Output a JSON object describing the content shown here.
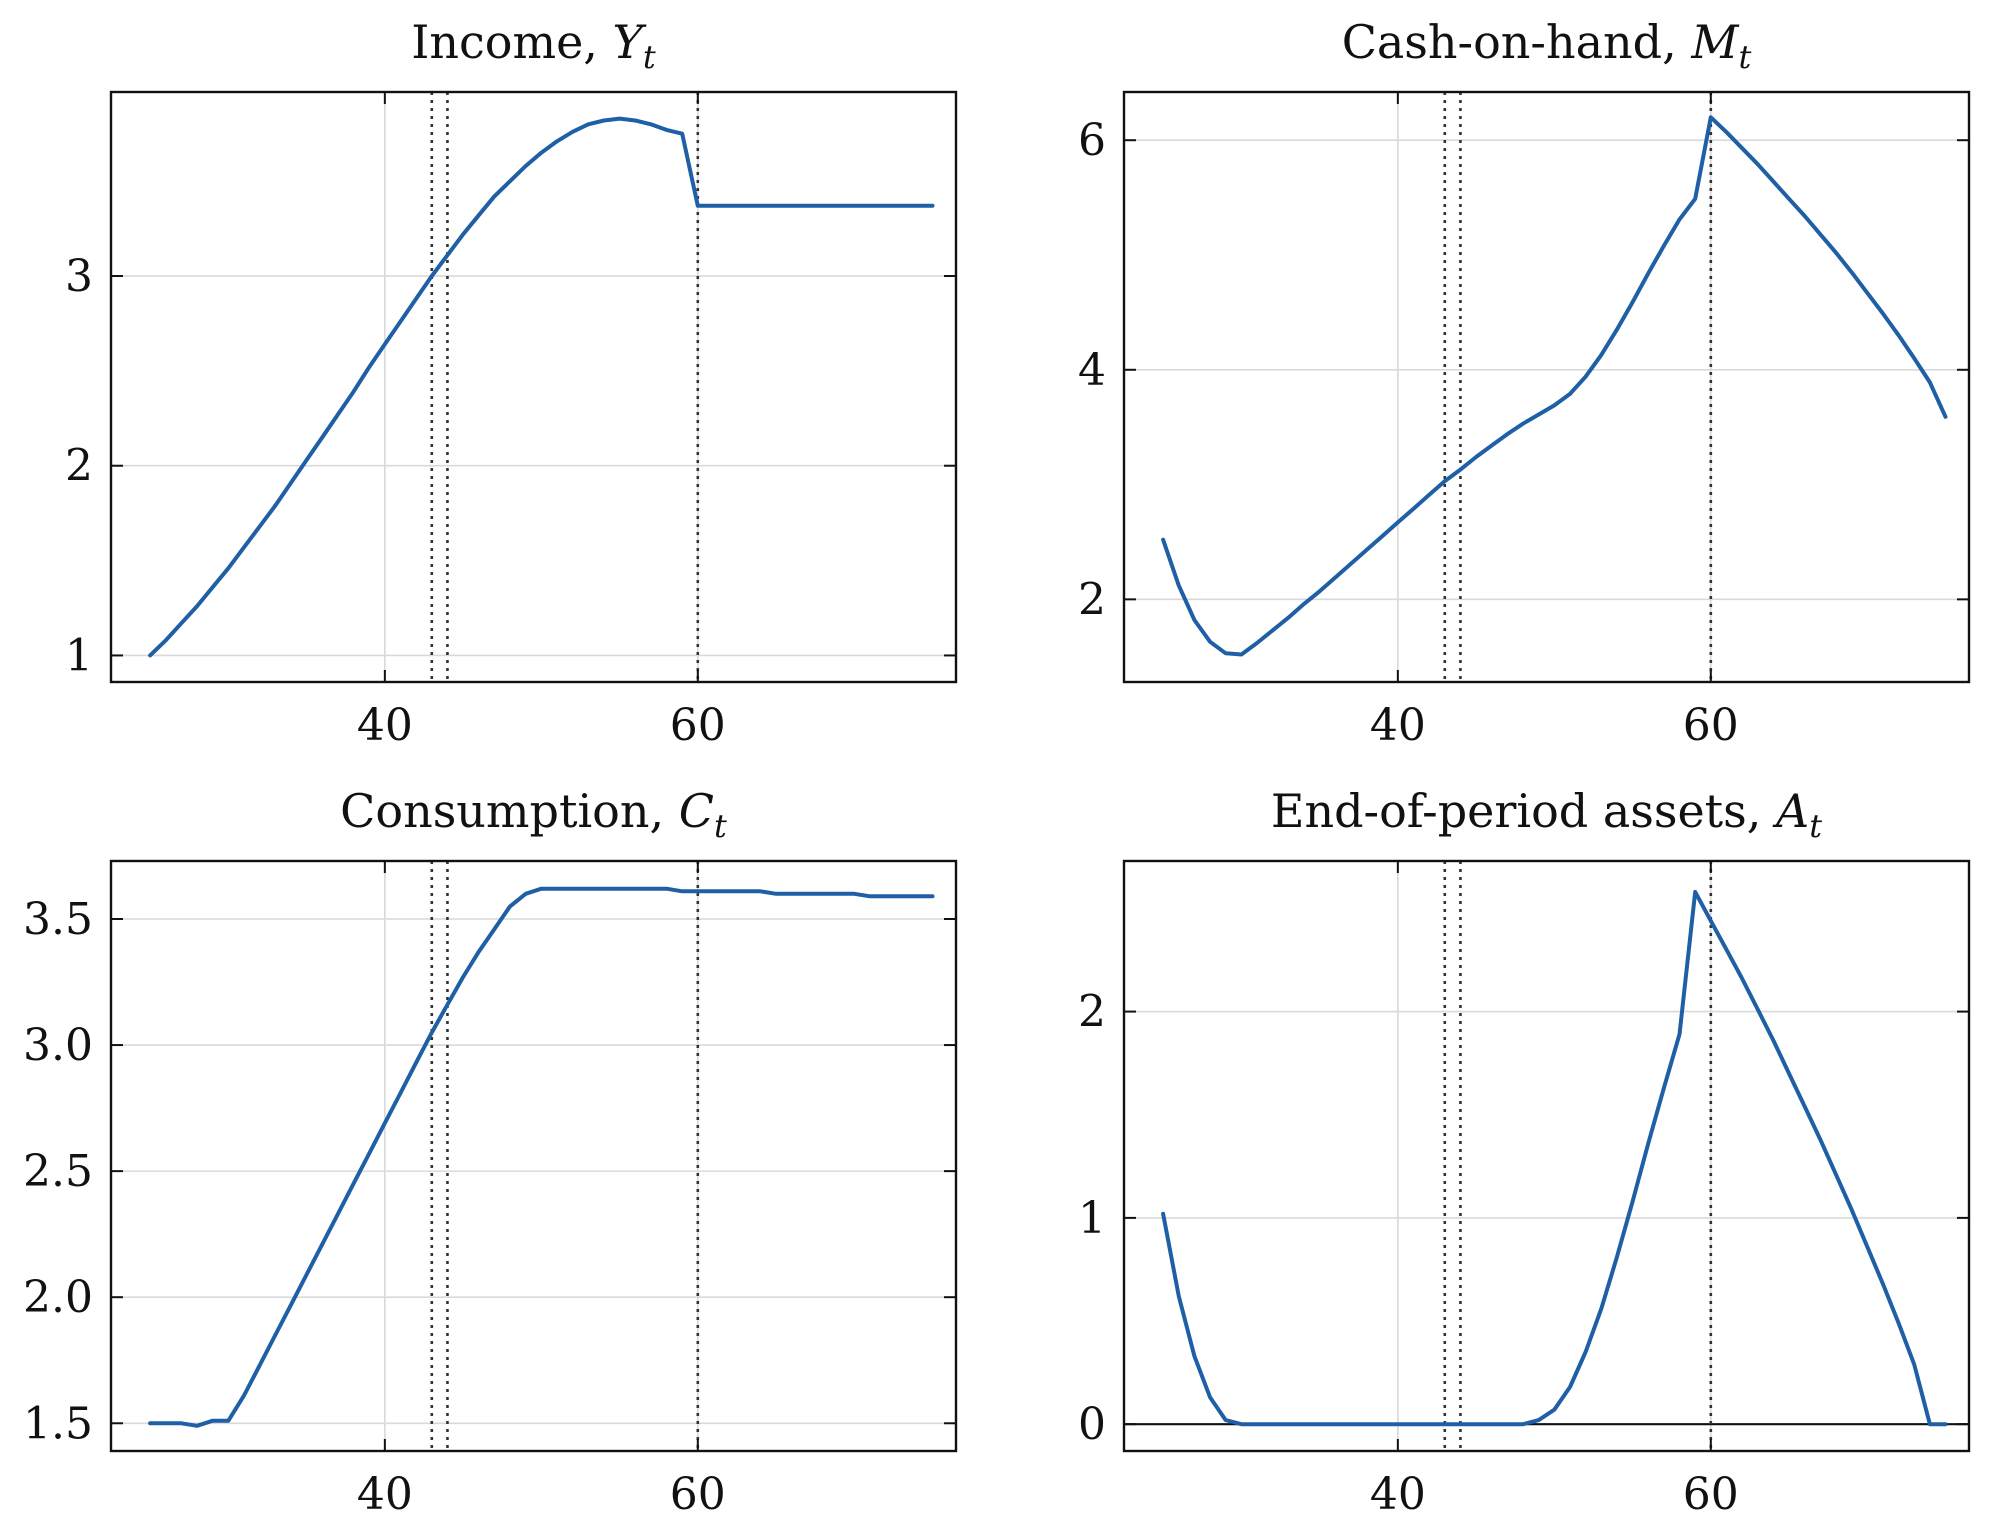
{
  "colors": {
    "series": "#1f5fa5",
    "grid": "#d9d9d9",
    "marker_lines": "#333333"
  },
  "chart_data": [
    {
      "type": "line",
      "title": "Income, ",
      "title_symbol": "Y",
      "title_sub": "t",
      "xlim": [
        22.5,
        76.5
      ],
      "ylim": [
        0.86,
        3.97
      ],
      "x_ticks": [
        40,
        60
      ],
      "y_ticks": [
        1,
        2,
        3
      ],
      "y_tick_labels": [
        "1",
        "2",
        "3"
      ],
      "grid": true,
      "vertical_lines": [
        43,
        44,
        60
      ],
      "x": [
        25,
        26,
        27,
        28,
        29,
        30,
        31,
        32,
        33,
        34,
        35,
        36,
        37,
        38,
        39,
        40,
        41,
        42,
        43,
        44,
        45,
        46,
        47,
        48,
        49,
        50,
        51,
        52,
        53,
        54,
        55,
        56,
        57,
        58,
        59,
        60,
        61,
        62,
        63,
        64,
        65,
        66,
        67,
        68,
        69,
        70,
        71,
        72,
        73,
        74,
        75
      ],
      "y": [
        1.0,
        1.08,
        1.17,
        1.26,
        1.36,
        1.46,
        1.57,
        1.68,
        1.79,
        1.91,
        2.03,
        2.15,
        2.27,
        2.39,
        2.52,
        2.64,
        2.76,
        2.88,
        3.0,
        3.11,
        3.22,
        3.32,
        3.42,
        3.5,
        3.58,
        3.65,
        3.71,
        3.76,
        3.8,
        3.82,
        3.83,
        3.82,
        3.8,
        3.77,
        3.75,
        3.37,
        3.37,
        3.37,
        3.37,
        3.37,
        3.37,
        3.37,
        3.37,
        3.37,
        3.37,
        3.37,
        3.37,
        3.37,
        3.37,
        3.37,
        3.37
      ]
    },
    {
      "type": "line",
      "title": "Cash-on-hand, ",
      "title_symbol": "M",
      "title_sub": "t",
      "xlim": [
        22.5,
        76.5
      ],
      "ylim": [
        1.28,
        6.42
      ],
      "x_ticks": [
        40,
        60
      ],
      "y_ticks": [
        2,
        4,
        6
      ],
      "y_tick_labels": [
        "2",
        "4",
        "6"
      ],
      "grid": true,
      "vertical_lines": [
        43,
        44,
        60
      ],
      "x": [
        25,
        26,
        27,
        28,
        29,
        30,
        31,
        32,
        33,
        34,
        35,
        36,
        37,
        38,
        39,
        40,
        41,
        42,
        43,
        44,
        45,
        46,
        47,
        48,
        49,
        50,
        51,
        52,
        53,
        54,
        55,
        56,
        57,
        58,
        59,
        60,
        61,
        62,
        63,
        64,
        65,
        66,
        67,
        68,
        69,
        70,
        71,
        72,
        73,
        74,
        75
      ],
      "y": [
        2.52,
        2.12,
        1.82,
        1.63,
        1.53,
        1.52,
        1.62,
        1.73,
        1.84,
        1.96,
        2.07,
        2.19,
        2.31,
        2.43,
        2.55,
        2.67,
        2.79,
        2.91,
        3.03,
        3.13,
        3.24,
        3.34,
        3.44,
        3.53,
        3.61,
        3.69,
        3.79,
        3.94,
        4.13,
        4.35,
        4.59,
        4.84,
        5.08,
        5.31,
        5.49,
        6.2,
        6.07,
        5.93,
        5.79,
        5.64,
        5.49,
        5.34,
        5.18,
        5.02,
        4.85,
        4.67,
        4.49,
        4.3,
        4.1,
        3.89,
        3.59
      ]
    },
    {
      "type": "line",
      "title": "Consumption, ",
      "title_symbol": "C",
      "title_sub": "t",
      "xlim": [
        22.5,
        76.5
      ],
      "ylim": [
        1.39,
        3.73
      ],
      "x_ticks": [
        40,
        60
      ],
      "y_ticks": [
        1.5,
        2.0,
        2.5,
        3.0,
        3.5
      ],
      "y_tick_labels": [
        "1.5",
        "2.0",
        "2.5",
        "3.0",
        "3.5"
      ],
      "grid": true,
      "vertical_lines": [
        43,
        44,
        60
      ],
      "x": [
        25,
        26,
        27,
        28,
        29,
        30,
        31,
        32,
        33,
        34,
        35,
        36,
        37,
        38,
        39,
        40,
        41,
        42,
        43,
        44,
        45,
        46,
        47,
        48,
        49,
        50,
        51,
        52,
        53,
        54,
        55,
        56,
        57,
        58,
        59,
        60,
        61,
        62,
        63,
        64,
        65,
        66,
        67,
        68,
        69,
        70,
        71,
        72,
        73,
        74,
        75
      ],
      "y": [
        1.5,
        1.5,
        1.5,
        1.49,
        1.51,
        1.51,
        1.61,
        1.73,
        1.85,
        1.97,
        2.09,
        2.21,
        2.33,
        2.45,
        2.57,
        2.69,
        2.81,
        2.93,
        3.05,
        3.16,
        3.27,
        3.37,
        3.46,
        3.55,
        3.6,
        3.62,
        3.62,
        3.62,
        3.62,
        3.62,
        3.62,
        3.62,
        3.62,
        3.62,
        3.61,
        3.61,
        3.61,
        3.61,
        3.61,
        3.61,
        3.6,
        3.6,
        3.6,
        3.6,
        3.6,
        3.6,
        3.59,
        3.59,
        3.59,
        3.59,
        3.59
      ]
    },
    {
      "type": "line",
      "title": "End-of-period assets, ",
      "title_symbol": "A",
      "title_sub": "t",
      "xlim": [
        22.5,
        76.5
      ],
      "ylim": [
        -0.13,
        2.73
      ],
      "x_ticks": [
        40,
        60
      ],
      "y_ticks": [
        0,
        1,
        2
      ],
      "y_tick_labels": [
        "0",
        "1",
        "2"
      ],
      "grid": true,
      "zero_line": true,
      "vertical_lines": [
        43,
        44,
        60
      ],
      "x": [
        25,
        26,
        27,
        28,
        29,
        30,
        31,
        32,
        33,
        34,
        35,
        36,
        37,
        38,
        39,
        40,
        41,
        42,
        43,
        44,
        45,
        46,
        47,
        48,
        49,
        50,
        51,
        52,
        53,
        54,
        55,
        56,
        57,
        58,
        59,
        60,
        61,
        62,
        63,
        64,
        65,
        66,
        67,
        68,
        69,
        70,
        71,
        72,
        73,
        74,
        75
      ],
      "y": [
        1.02,
        0.62,
        0.33,
        0.13,
        0.02,
        0.0,
        0.0,
        0.0,
        0.0,
        0.0,
        0.0,
        0.0,
        0.0,
        0.0,
        0.0,
        0.0,
        0.0,
        0.0,
        0.0,
        0.0,
        0.0,
        0.0,
        0.0,
        0.0,
        0.02,
        0.07,
        0.18,
        0.35,
        0.56,
        0.81,
        1.08,
        1.36,
        1.63,
        1.89,
        2.58,
        2.44,
        2.3,
        2.16,
        2.01,
        1.86,
        1.7,
        1.54,
        1.38,
        1.21,
        1.04,
        0.86,
        0.68,
        0.49,
        0.29,
        0.0,
        0.0
      ]
    }
  ]
}
